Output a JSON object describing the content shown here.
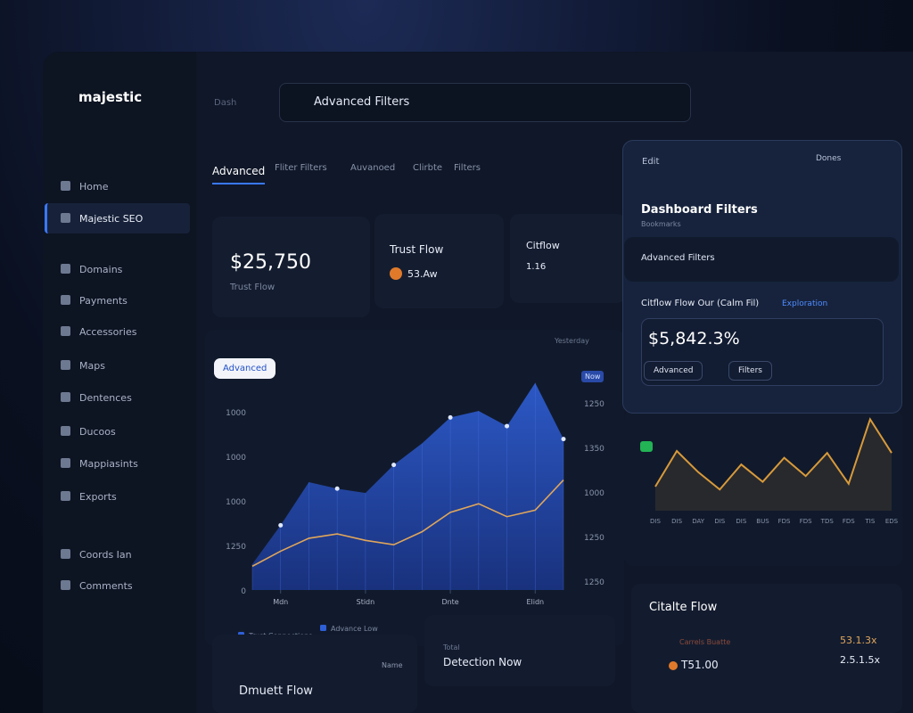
{
  "brand": "majestic",
  "topbar": {
    "crumb": "Dash",
    "search": "Advanced Filters"
  },
  "sidebar": {
    "items": [
      "Home",
      "Majestic SEO",
      "Domains",
      "Payments",
      "Accessories",
      "Maps",
      "Dentences",
      "Ducoos",
      "Mappiasints",
      "Exports",
      "Coords Ian",
      "Comments"
    ]
  },
  "tabs": [
    "Advanced",
    "Fliter Filters",
    "Auvanoed",
    "Clirbte",
    "Filters"
  ],
  "stats": [
    {
      "value": "$25,750",
      "label": "Trust Flow"
    },
    {
      "title": "Trust Flow",
      "value": "53.Aw"
    },
    {
      "title": "Citflow",
      "value": "1.16"
    }
  ],
  "main_chart": {
    "type": "area",
    "badge": "Advanced",
    "range_label": "Yesterday",
    "tag": "Now",
    "x": [
      0,
      1,
      2,
      3,
      4,
      5,
      6,
      7,
      8,
      9,
      10,
      11
    ],
    "xlim": [
      0,
      11
    ],
    "xticks": [
      {
        "value": 1,
        "label": "Mdn"
      },
      {
        "value": 4,
        "label": "Stidn"
      },
      {
        "value": 7,
        "label": "Dnte"
      },
      {
        "value": 10,
        "label": "Elidn"
      }
    ],
    "ylim": [
      0,
      100
    ],
    "y_labels": [
      "0",
      "1250",
      "1000",
      "1000",
      "1000"
    ],
    "y2_labels": [
      "1250",
      "1350",
      "1000",
      "1250",
      "1250"
    ],
    "series": [
      {
        "name": "Trust Connections",
        "color": "#2f5fd6",
        "values": [
          12,
          30,
          50,
          47,
          45,
          58,
          68,
          80,
          83,
          76,
          96,
          70
        ]
      },
      {
        "name": "Advance Low",
        "color": "#e0a65a",
        "values": [
          11,
          18,
          24,
          26,
          23,
          21,
          27,
          36,
          40,
          34,
          37,
          51
        ]
      }
    ]
  },
  "panel": {
    "back": "Edit",
    "tools": "Dones",
    "title": "Dashboard Filters",
    "subtitle": "Bookmarks",
    "dropdown": "Advanced Filters",
    "filter_label": "Citflow Flow Our (Calm Fil)",
    "filter_link": "Exploration",
    "value": "$5,842.3%",
    "buttons": [
      "Advanced",
      "Filters"
    ]
  },
  "side_chart": {
    "type": "line",
    "color": "#d89a3a",
    "ylim": [
      0,
      100
    ],
    "categories": [
      "DIS",
      "DIS",
      "DAY",
      "DIS",
      "DIS",
      "BUS",
      "FDS",
      "FDS",
      "TDS",
      "FDS",
      "TIS",
      "EDS"
    ],
    "values": [
      25,
      62,
      40,
      22,
      48,
      30,
      55,
      36,
      60,
      28,
      95,
      60
    ]
  },
  "bottom": {
    "cards": [
      {
        "title": "Dmuett Flow",
        "meta": "Name"
      },
      {
        "title": "Detection Now",
        "meta": "Total"
      },
      {
        "title": "Citalte Flow",
        "rows": [
          {
            "label": "Carrels Buatte",
            "value": "53.1.3x"
          },
          {
            "label": "T51.00",
            "value": "2.5.1.5x"
          }
        ]
      }
    ]
  }
}
